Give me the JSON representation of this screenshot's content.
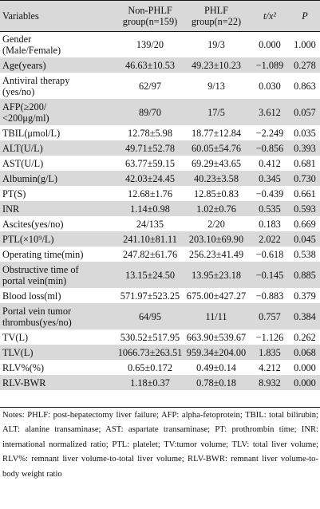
{
  "header": {
    "variables": "Variables",
    "col2_line1": "Non-PHLF",
    "col2_line2": "group(n=159)",
    "col3_line1": "PHLF",
    "col3_line2": "group(n=22)",
    "col4": "t/x²",
    "col5": "P"
  },
  "rows": [
    {
      "label": [
        "Gender",
        "(Male/Female)"
      ],
      "non": "139/20",
      "phlf": "19/3",
      "t": "0.000",
      "p": "1.000"
    },
    {
      "label": [
        "Age(years)"
      ],
      "non": "46.63±10.53",
      "phlf": "49.23±10.23",
      "t": "−1.089",
      "p": "0.278"
    },
    {
      "label": [
        "Antiviral therapy",
        "(yes/no)"
      ],
      "non": "62/97",
      "phlf": "9/13",
      "t": "0.030",
      "p": "0.863"
    },
    {
      "label": [
        "AFP(≥200/",
        "<200μg/ml)"
      ],
      "non": "89/70",
      "phlf": "17/5",
      "t": "3.612",
      "p": "0.057"
    },
    {
      "label": [
        "TBIL(μmol/L)"
      ],
      "non": "12.78±5.98",
      "phlf": "18.77±12.84",
      "t": "−2.249",
      "p": "0.035"
    },
    {
      "label": [
        "ALT(U/L)"
      ],
      "non": "49.71±52.78",
      "phlf": "60.05±54.76",
      "t": "−0.856",
      "p": "0.393"
    },
    {
      "label": [
        "AST(U/L)"
      ],
      "non": "63.77±59.15",
      "phlf": "69.29±43.65",
      "t": "0.412",
      "p": "0.681"
    },
    {
      "label": [
        "Albumin(g/L)"
      ],
      "non": "42.03±24.45",
      "phlf": "40.23±3.58",
      "t": "0.345",
      "p": "0.730"
    },
    {
      "label": [
        "PT(S)"
      ],
      "non": "12.68±1.76",
      "phlf": "12.85±0.83",
      "t": "−0.439",
      "p": "0.661"
    },
    {
      "label": [
        "INR"
      ],
      "non": "1.14±0.98",
      "phlf": "1.02±0.76",
      "t": "0.535",
      "p": "0.593"
    },
    {
      "label": [
        "Ascites(yes/no)"
      ],
      "non": "24/135",
      "phlf": "2/20",
      "t": "0.183",
      "p": "0.669"
    },
    {
      "label": [
        "PTL(×10⁹/L)"
      ],
      "non": "241.10±81.11",
      "phlf": "203.10±69.90",
      "t": "2.022",
      "p": "0.045"
    },
    {
      "label": [
        "Operating time(min)"
      ],
      "non": "247.82±61.76",
      "phlf": "256.23±41.49",
      "t": "−0.618",
      "p": "0.538"
    },
    {
      "label": [
        "Obstructive time of",
        "portal vein(min)"
      ],
      "non": "13.15±24.50",
      "phlf": "13.95±23.18",
      "t": "−0.145",
      "p": "0.885"
    },
    {
      "label": [
        "Blood loss(ml)"
      ],
      "non": "571.97±523.25",
      "phlf": "675.00±427.27",
      "t": "−0.883",
      "p": "0.379"
    },
    {
      "label": [
        "Portal vein tumor",
        "thrombus(yes/no)"
      ],
      "non": "64/95",
      "phlf": "11/11",
      "t": "0.757",
      "p": "0.384"
    },
    {
      "label": [
        "TV(L)"
      ],
      "non": "530.52±517.95",
      "phlf": "663.90±539.67",
      "t": "−1.126",
      "p": "0.262"
    },
    {
      "label": [
        "TLV(L)"
      ],
      "non": "1066.73±263.51",
      "phlf": "959.34±204.00",
      "t": "1.835",
      "p": "0.068"
    },
    {
      "label": [
        "RLV%(%)"
      ],
      "non": "0.65±0.172",
      "phlf": "0.49±0.14",
      "t": "4.212",
      "p": "0.000"
    },
    {
      "label": [
        "RLV-BWR"
      ],
      "non": "1.18±0.37",
      "phlf": "0.78±0.18",
      "t": "8.932",
      "p": "0.000"
    }
  ],
  "notes": "Notes: PHLF: post-hepatectomy liver failure; AFP: alpha-fetoprotein; TBIL: total bilirubin; ALT: alanine transaminase; AST: aspartate transaminase; PT: prothrombin time; INR: international normalized ratio; PTL: platelet; TV:tumor volume; TLV: total liver volume; RLV%: remnant liver volume-to-total liver volume; RLV-BWR: remnant liver volume-to-body weight ratio"
}
